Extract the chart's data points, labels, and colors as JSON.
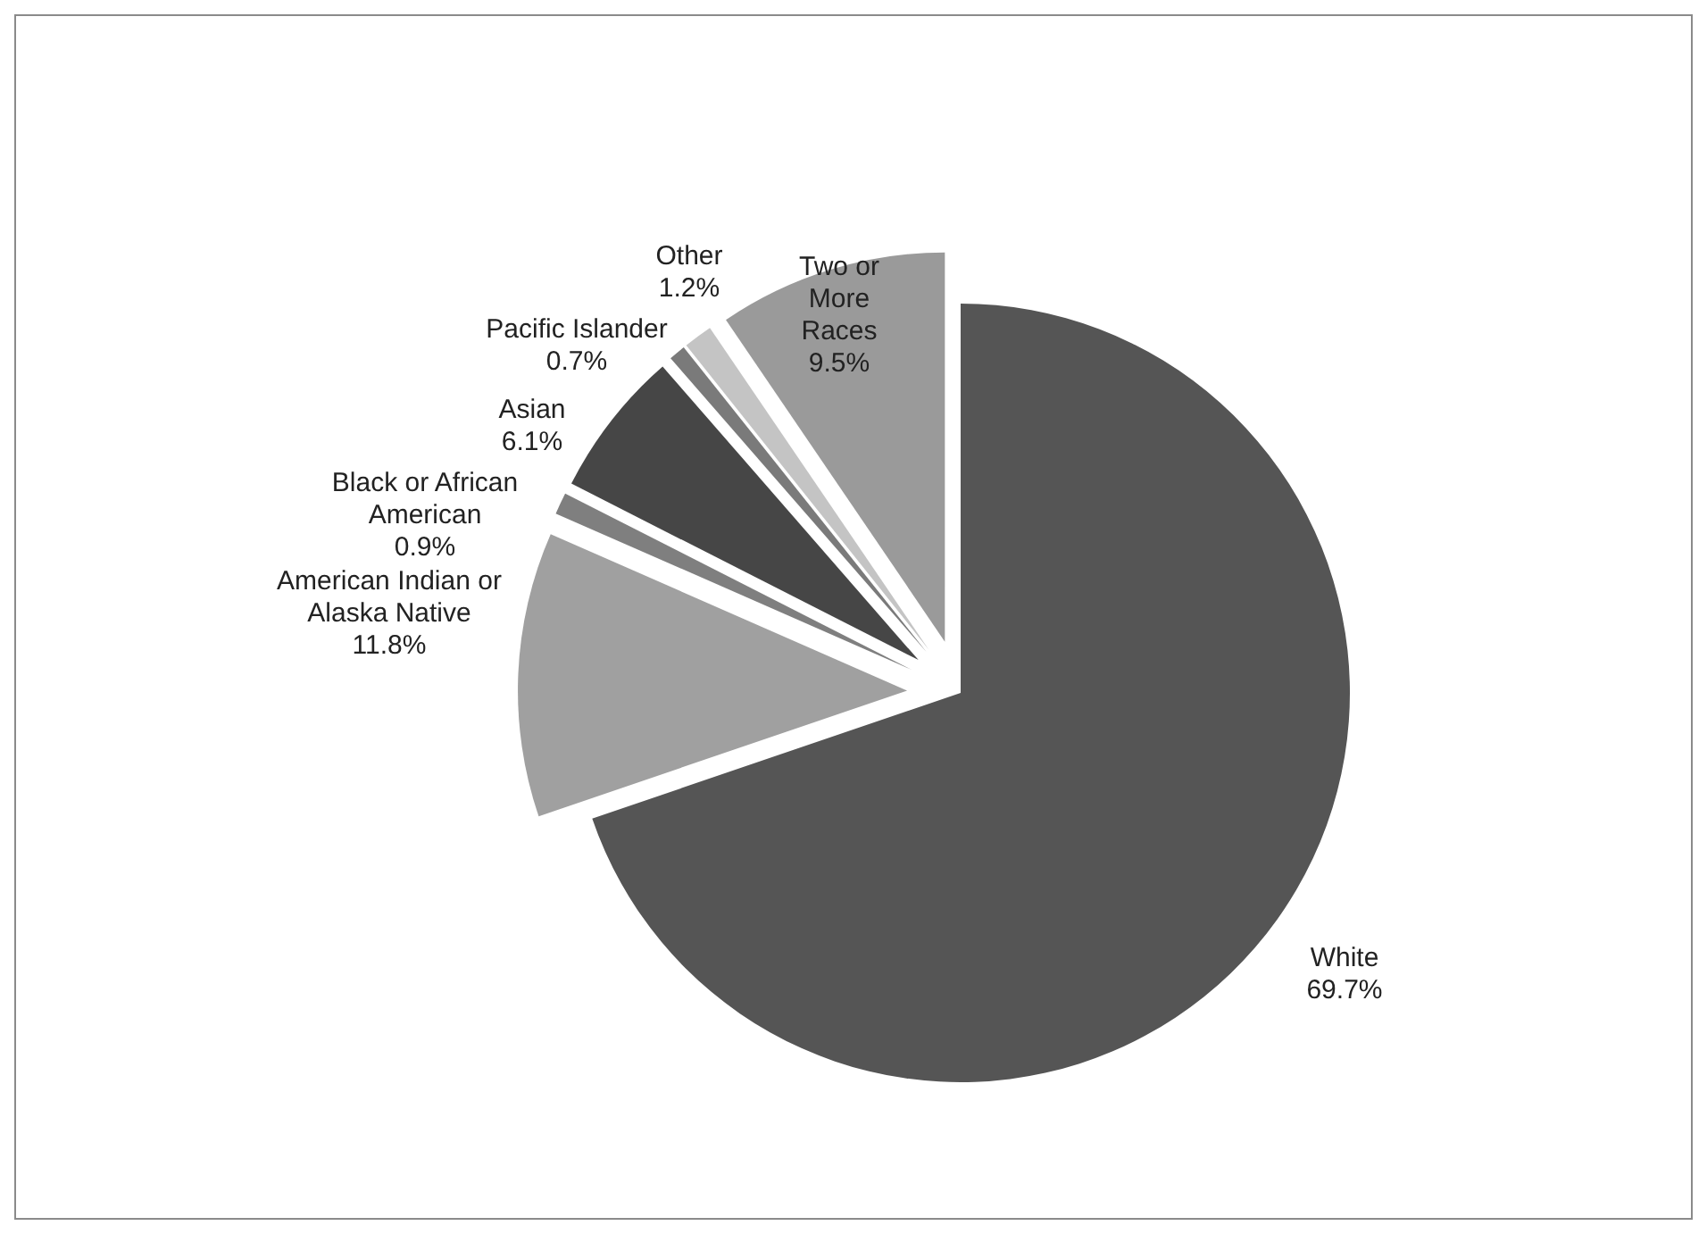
{
  "chart_data": {
    "type": "pie",
    "categories": [
      "White",
      "American Indian or Alaska Native",
      "Black or African American",
      "Asian",
      "Pacific Islander",
      "Other",
      "Two or More Races"
    ],
    "values": [
      69.7,
      11.8,
      0.9,
      6.1,
      0.7,
      1.2,
      9.5
    ],
    "colors": [
      "#555555",
      "#a0a0a0",
      "#7f7f7f",
      "#464646",
      "#7a7a7a",
      "#c4c4c4",
      "#9a9a9a"
    ],
    "value_labels": [
      "69.7%",
      "11.8%",
      "0.9%",
      "6.1%",
      "0.7%",
      "1.2%",
      "9.5%"
    ],
    "legend": false
  }
}
